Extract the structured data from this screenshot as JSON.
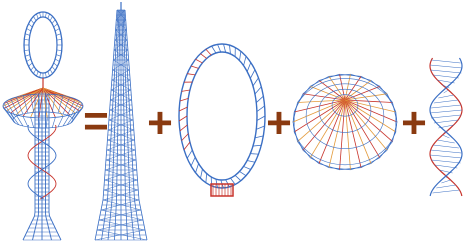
{
  "equation": {
    "operators": [
      "=",
      "+",
      "+",
      "+"
    ]
  }
}
